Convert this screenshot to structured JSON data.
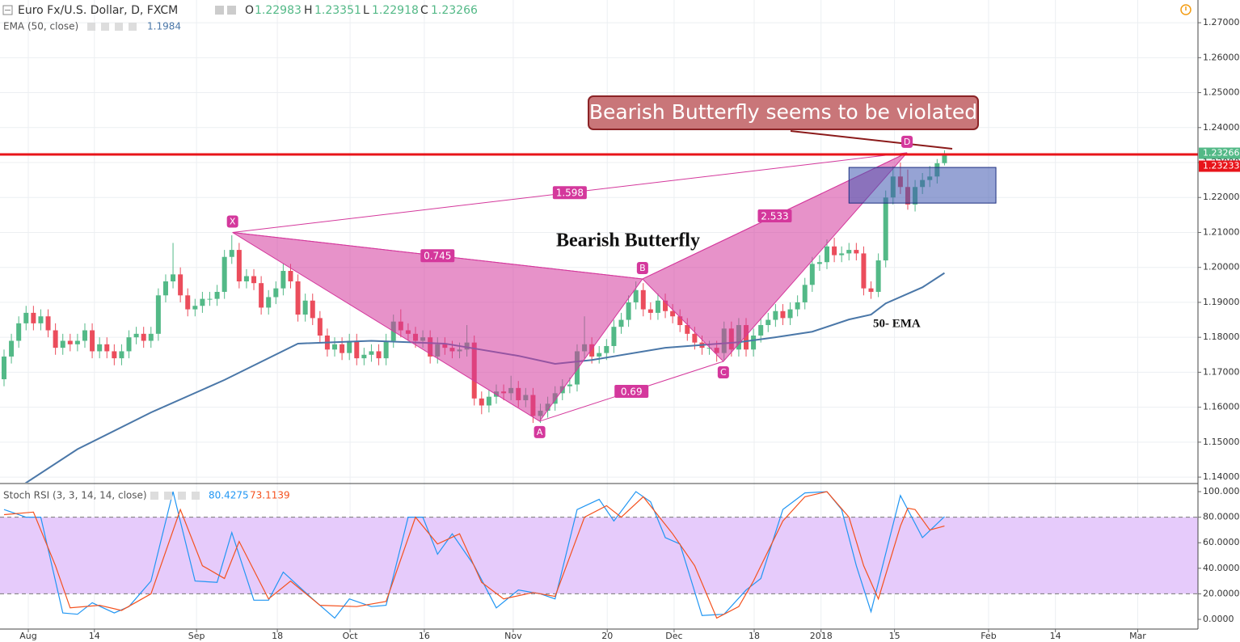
{
  "chart_data": [
    {
      "type": "candlestick",
      "title": "Euro Fx/U.S. Dollar, D, FXCM",
      "ohlc_labels": [
        "O",
        "H",
        "L",
        "C"
      ],
      "up_color": "#53b987",
      "down_color": "#eb4d5c",
      "open": [
        1.168,
        1.1745,
        1.179,
        1.184,
        1.187,
        1.184,
        1.186,
        1.182,
        1.177,
        1.179,
        1.178,
        1.179,
        1.182,
        1.176,
        1.178,
        1.176,
        1.174,
        1.176,
        1.18,
        1.181,
        1.179,
        1.181,
        1.192,
        1.196,
        1.198,
        1.192,
        1.188,
        1.189,
        1.191,
        1.191,
        1.193,
        1.203,
        1.205,
        1.196,
        1.1975,
        1.1955,
        1.1885,
        1.1915,
        1.194,
        1.199,
        1.196,
        1.1865,
        1.1905,
        1.1855,
        1.1805,
        1.1765,
        1.178,
        1.1755,
        1.179,
        1.174,
        1.175,
        1.176,
        1.174,
        1.179,
        1.1845,
        1.182,
        1.181,
        1.179,
        1.18,
        1.1745,
        1.178,
        1.177,
        1.176,
        1.1765,
        1.1785,
        1.1625,
        1.1605,
        1.163,
        1.1645,
        1.164,
        1.1655,
        1.162,
        1.1635,
        1.1575,
        1.159,
        1.161,
        1.164,
        1.166,
        1.1665,
        1.176,
        1.178,
        1.1745,
        1.1755,
        1.1775,
        1.183,
        1.185,
        1.19,
        1.1935,
        1.188,
        1.187,
        1.1905,
        1.1875,
        1.186,
        1.1835,
        1.181,
        1.1785,
        1.177,
        1.177,
        1.1755,
        1.1825,
        1.1765,
        1.1835,
        1.1765,
        1.1805,
        1.1835,
        1.185,
        1.1875,
        1.1855,
        1.188,
        1.19,
        1.195,
        1.201,
        1.2015,
        1.206,
        1.2035,
        1.204,
        1.205,
        1.204,
        1.194,
        1.193,
        1.202,
        1.22,
        1.226,
        1.223,
        1.218,
        1.223,
        1.225,
        1.226,
        1.22983
      ],
      "high": [
        1.1765,
        1.181,
        1.186,
        1.189,
        1.189,
        1.188,
        1.188,
        1.184,
        1.181,
        1.181,
        1.181,
        1.184,
        1.184,
        1.18,
        1.18,
        1.178,
        1.178,
        1.182,
        1.183,
        1.183,
        1.183,
        1.194,
        1.198,
        1.207,
        1.2,
        1.194,
        1.191,
        1.193,
        1.193,
        1.195,
        1.205,
        1.2092,
        1.207,
        1.1995,
        1.1995,
        1.1975,
        1.1935,
        1.196,
        1.201,
        1.201,
        1.198,
        1.1925,
        1.1925,
        1.1875,
        1.1825,
        1.18,
        1.18,
        1.181,
        1.181,
        1.177,
        1.178,
        1.178,
        1.181,
        1.1865,
        1.188,
        1.184,
        1.183,
        1.182,
        1.182,
        1.18,
        1.18,
        1.179,
        1.1785,
        1.1835,
        1.1805,
        1.1645,
        1.165,
        1.1665,
        1.1665,
        1.169,
        1.1675,
        1.1655,
        1.1655,
        1.161,
        1.163,
        1.166,
        1.168,
        1.1685,
        1.178,
        1.186,
        1.18,
        1.1775,
        1.1795,
        1.185,
        1.187,
        1.192,
        1.196,
        1.1955,
        1.19,
        1.1925,
        1.1925,
        1.1895,
        1.188,
        1.1855,
        1.183,
        1.1805,
        1.179,
        1.179,
        1.1845,
        1.1845,
        1.1855,
        1.1855,
        1.1825,
        1.1855,
        1.187,
        1.1895,
        1.1895,
        1.19,
        1.192,
        1.197,
        1.203,
        1.2035,
        1.208,
        1.2085,
        1.206,
        1.207,
        1.207,
        1.206,
        1.196,
        1.204,
        1.222,
        1.229,
        1.23,
        1.228,
        1.225,
        1.227,
        1.229,
        1.231,
        1.23351
      ],
      "low": [
        1.166,
        1.1725,
        1.177,
        1.182,
        1.182,
        1.182,
        1.18,
        1.175,
        1.175,
        1.176,
        1.176,
        1.177,
        1.174,
        1.174,
        1.174,
        1.172,
        1.172,
        1.174,
        1.178,
        1.177,
        1.177,
        1.179,
        1.19,
        1.194,
        1.19,
        1.186,
        1.186,
        1.187,
        1.189,
        1.189,
        1.191,
        1.201,
        1.194,
        1.194,
        1.1935,
        1.1865,
        1.1865,
        1.1895,
        1.192,
        1.194,
        1.1845,
        1.1845,
        1.1835,
        1.1785,
        1.1745,
        1.1745,
        1.1735,
        1.1735,
        1.172,
        1.172,
        1.173,
        1.172,
        1.172,
        1.177,
        1.18,
        1.179,
        1.177,
        1.177,
        1.1725,
        1.1725,
        1.175,
        1.174,
        1.174,
        1.1745,
        1.1605,
        1.158,
        1.1585,
        1.161,
        1.162,
        1.162,
        1.16,
        1.16,
        1.1555,
        1.1555,
        1.157,
        1.159,
        1.162,
        1.164,
        1.1645,
        1.174,
        1.1725,
        1.1725,
        1.1735,
        1.1755,
        1.181,
        1.183,
        1.188,
        1.186,
        1.185,
        1.185,
        1.1855,
        1.184,
        1.1815,
        1.179,
        1.1765,
        1.175,
        1.175,
        1.173,
        1.1735,
        1.1745,
        1.1745,
        1.1745,
        1.1745,
        1.1785,
        1.1815,
        1.183,
        1.1835,
        1.1835,
        1.186,
        1.188,
        1.193,
        1.199,
        1.1995,
        1.2015,
        1.2015,
        1.202,
        1.202,
        1.192,
        1.191,
        1.1915,
        1.2,
        1.218,
        1.221,
        1.2165,
        1.216,
        1.221,
        1.223,
        1.224,
        1.22918
      ],
      "close": [
        1.1745,
        1.179,
        1.184,
        1.187,
        1.184,
        1.186,
        1.182,
        1.177,
        1.179,
        1.178,
        1.179,
        1.182,
        1.176,
        1.178,
        1.176,
        1.174,
        1.176,
        1.18,
        1.181,
        1.179,
        1.181,
        1.192,
        1.196,
        1.198,
        1.192,
        1.188,
        1.189,
        1.191,
        1.191,
        1.193,
        1.203,
        1.205,
        1.196,
        1.1975,
        1.1955,
        1.1885,
        1.1915,
        1.194,
        1.199,
        1.196,
        1.1865,
        1.1905,
        1.1855,
        1.1805,
        1.1765,
        1.178,
        1.1755,
        1.179,
        1.174,
        1.175,
        1.176,
        1.174,
        1.179,
        1.1845,
        1.182,
        1.181,
        1.179,
        1.18,
        1.1745,
        1.178,
        1.177,
        1.176,
        1.1765,
        1.1785,
        1.1625,
        1.1605,
        1.163,
        1.1645,
        1.164,
        1.1655,
        1.162,
        1.1635,
        1.1575,
        1.159,
        1.161,
        1.164,
        1.166,
        1.1665,
        1.176,
        1.178,
        1.1745,
        1.1755,
        1.1775,
        1.183,
        1.185,
        1.19,
        1.1935,
        1.188,
        1.187,
        1.1905,
        1.1875,
        1.186,
        1.1835,
        1.181,
        1.1785,
        1.177,
        1.177,
        1.1755,
        1.1825,
        1.1765,
        1.1835,
        1.1765,
        1.1805,
        1.1835,
        1.185,
        1.1875,
        1.1855,
        1.188,
        1.19,
        1.195,
        1.201,
        1.2015,
        1.206,
        1.2035,
        1.204,
        1.205,
        1.204,
        1.194,
        1.193,
        1.202,
        1.22,
        1.226,
        1.223,
        1.218,
        1.223,
        1.225,
        1.226,
        1.2298,
        1.23266
      ],
      "ema": {
        "name": "EMA (50, close)",
        "color": "#4a77a8",
        "x": [
          2,
          10,
          20,
          30,
          40,
          50,
          60,
          70,
          75,
          80,
          90,
          100,
          105,
          110,
          115,
          118,
          120,
          125,
          128
        ],
        "values": [
          1.137,
          1.148,
          1.1585,
          1.1678,
          1.1782,
          1.179,
          1.1782,
          1.1747,
          1.1724,
          1.1735,
          1.177,
          1.1786,
          1.18,
          1.1816,
          1.1851,
          1.1865,
          1.1897,
          1.1943,
          1.1984
        ]
      },
      "level": {
        "value": 1.23233,
        "color": "#e8141a"
      },
      "pattern": {
        "labels": [
          "X",
          "A",
          "B",
          "C",
          "D"
        ],
        "x": [
          31.1,
          72.9,
          86.9,
          97.9,
          122.9
        ],
        "values": [
          1.21,
          1.156,
          1.1967,
          1.1731,
          1.2328
        ],
        "color": "#d4389c"
      },
      "ratios": [
        1.598,
        0.745,
        2.533,
        0.69
      ],
      "box": {
        "x": [
          115,
          135
        ],
        "values": [
          1.2184,
          1.2286
        ]
      },
      "annotations": [
        "Bearish Butterfly seems to be violated",
        "Bearish Butterfly",
        "50- EMA"
      ],
      "xlim": [
        -0.55,
        162.5
      ],
      "xticks": [
        {
          "value": 3.3,
          "label": "Aug"
        },
        {
          "value": 12.3,
          "label": "14"
        },
        {
          "value": 26.2,
          "label": "Sep"
        },
        {
          "value": 37.2,
          "label": "18"
        },
        {
          "value": 47.1,
          "label": "Oct"
        },
        {
          "value": 57.2,
          "label": "16"
        },
        {
          "value": 69.3,
          "label": "Nov"
        },
        {
          "value": 82.1,
          "label": "20"
        },
        {
          "value": 91.2,
          "label": "Dec"
        },
        {
          "value": 102.1,
          "label": "18"
        },
        {
          "value": 111.2,
          "label": "2018"
        },
        {
          "value": 121.2,
          "label": "15"
        },
        {
          "value": 134,
          "label": "Feb"
        },
        {
          "value": 143.1,
          "label": "14"
        },
        {
          "value": 154.3,
          "label": "Mar"
        }
      ],
      "ylim": [
        1.1384,
        1.2765
      ],
      "yticks": [
        {
          "value": 1.14,
          "label": "1.14000"
        },
        {
          "value": 1.15,
          "label": "1.15000"
        },
        {
          "value": 1.16,
          "label": "1.16000"
        },
        {
          "value": 1.17,
          "label": "1.17000"
        },
        {
          "value": 1.18,
          "label": "1.18000"
        },
        {
          "value": 1.19,
          "label": "1.19000"
        },
        {
          "value": 1.2,
          "label": "1.20000"
        },
        {
          "value": 1.21,
          "label": "1.21000"
        },
        {
          "value": 1.22,
          "label": "1.22000"
        },
        {
          "value": 1.23,
          "label": "1.23000"
        },
        {
          "value": 1.24,
          "label": "1.24000"
        },
        {
          "value": 1.25,
          "label": "1.25000"
        },
        {
          "value": 1.26,
          "label": "1.26000"
        },
        {
          "value": 1.27,
          "label": "1.27000"
        }
      ],
      "grid": true
    },
    {
      "type": "line",
      "title": "Stoch RSI (3, 3, 14, 14, close)",
      "series": [
        {
          "color": "#2196f3",
          "x": [
            0,
            3,
            5,
            8,
            10,
            12,
            15,
            17,
            20,
            23,
            26,
            29,
            31,
            34,
            36,
            38,
            42,
            45,
            47,
            50,
            52,
            55,
            57,
            59,
            61,
            64,
            67,
            70,
            73,
            75,
            78,
            81,
            83,
            86,
            88,
            90,
            92,
            95,
            98,
            101,
            103,
            106,
            109,
            112,
            114,
            116,
            118,
            122,
            125,
            128
          ],
          "values": [
            86,
            80,
            80,
            5,
            4,
            13,
            5,
            10,
            30,
            100,
            30,
            29,
            68,
            15,
            15,
            37,
            16,
            1,
            16,
            10,
            11,
            80,
            80,
            51,
            67,
            42,
            9,
            23,
            20,
            16,
            86,
            94,
            77,
            100,
            92,
            64,
            59,
            3,
            4,
            23,
            32,
            86,
            99,
            100,
            86,
            42,
            6,
            97,
            64,
            80.4275
          ]
        },
        {
          "color": "#f4511e",
          "x": [
            0,
            4,
            7,
            9,
            13,
            16,
            20,
            24,
            27,
            30,
            32,
            36,
            39,
            43,
            48,
            52,
            56,
            59,
            62,
            65,
            68,
            72,
            75,
            79,
            82,
            84,
            87,
            91,
            94,
            97,
            100,
            102,
            106,
            109,
            112,
            115,
            117,
            119,
            122,
            123,
            124,
            126,
            128
          ],
          "values": [
            82,
            84,
            42,
            9,
            11,
            7,
            20,
            86,
            42,
            32,
            61,
            16,
            30,
            11,
            10,
            14,
            80,
            59,
            67,
            29,
            16,
            21,
            18,
            80,
            89,
            80,
            96,
            67,
            42,
            1,
            10,
            30,
            77,
            96,
            100,
            80,
            42,
            16,
            73,
            87,
            86,
            70,
            73.1139
          ]
        }
      ],
      "band": [
        20,
        80
      ],
      "ylim": [
        -7.6,
        105.1
      ],
      "yticks": [
        {
          "value": 0,
          "label": "0.0000"
        },
        {
          "value": 20,
          "label": "20.0000"
        },
        {
          "value": 40,
          "label": "40.0000"
        },
        {
          "value": 60,
          "label": "60.0000"
        },
        {
          "value": 80,
          "label": "80.0000"
        },
        {
          "value": 100,
          "label": "100.0000"
        }
      ]
    }
  ]
}
